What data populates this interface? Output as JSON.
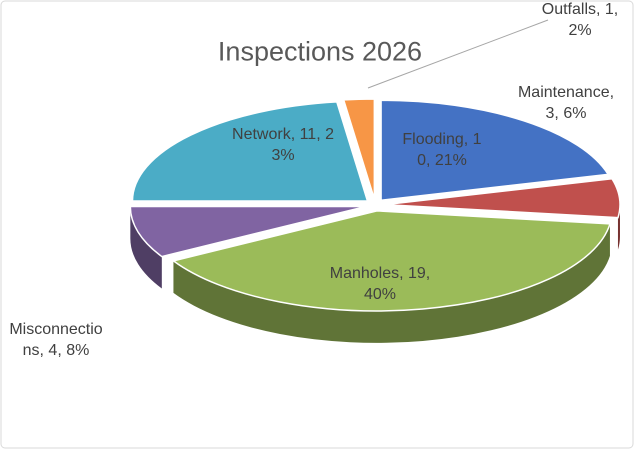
{
  "chart_data": {
    "type": "pie",
    "title": "Inspections 2026",
    "labels": [
      "Flooding, 10, 21%",
      "Maintenance, 3, 6%",
      "Manholes, 19, 40%",
      "Misconnections, 4, 8%",
      "Network, 11, 23%",
      "Outfalls, 1, 2%"
    ],
    "values": [
      10,
      3,
      19,
      4,
      11,
      1
    ],
    "colors": [
      "#4472c4",
      "#c0504d",
      "#9bbb59",
      "#8064a2",
      "#4bacc6",
      "#f79646"
    ]
  }
}
